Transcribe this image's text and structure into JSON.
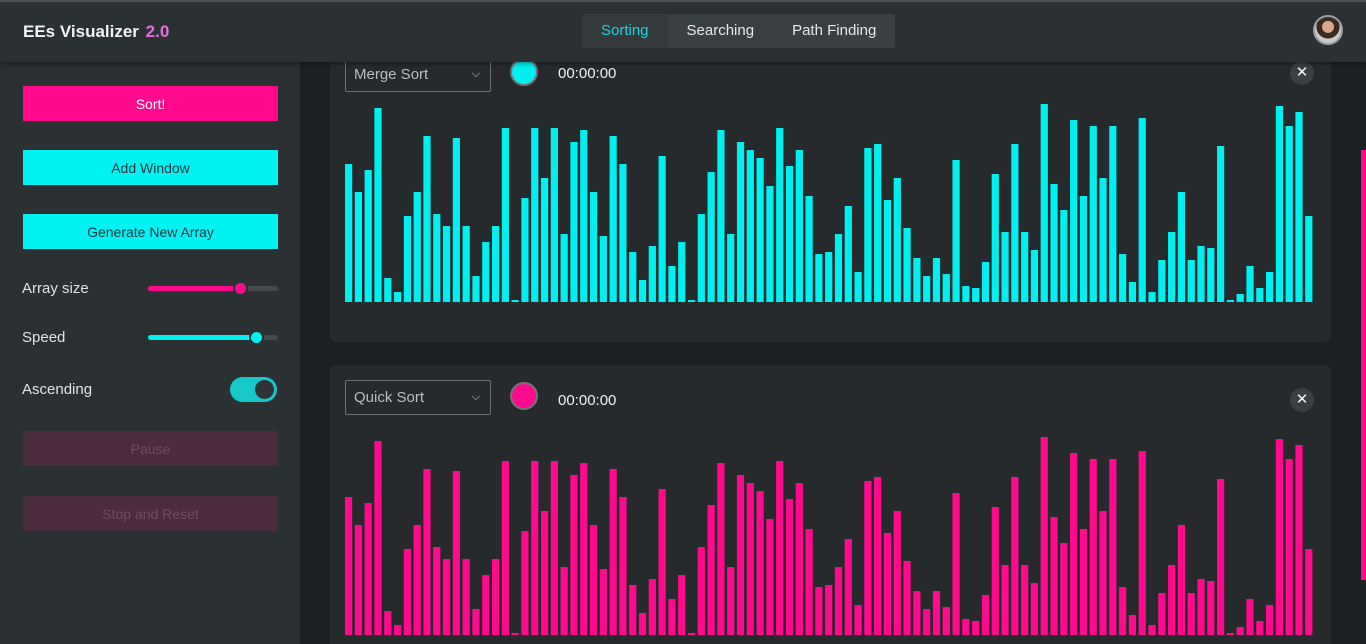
{
  "header": {
    "brand": "EEs Visualizer",
    "version": "2.0",
    "tabs": [
      {
        "label": "Sorting",
        "active": true
      },
      {
        "label": "Searching",
        "active": false
      },
      {
        "label": "Path Finding",
        "active": false
      }
    ]
  },
  "sidebar": {
    "sort_label": "Sort!",
    "add_window_label": "Add Window",
    "generate_label": "Generate New Array",
    "array_size_label": "Array size",
    "array_size_level": 0.71,
    "speed_label": "Speed",
    "speed_level": 0.83,
    "ascending_label": "Ascending",
    "ascending_on": true,
    "pause_label": "Pause",
    "stop_reset_label": "Stop and Reset"
  },
  "windows": [
    {
      "algorithm": "Merge Sort",
      "timer": "00:00:00",
      "color": "#00f0f0",
      "close": "✕"
    },
    {
      "algorithm": "Quick Sort",
      "timer": "00:00:00",
      "color": "#ff0a8c",
      "close": "✕"
    }
  ],
  "chart_data": {
    "type": "bar",
    "values": [
      69,
      55,
      66,
      97,
      12,
      5,
      43,
      55,
      83,
      44,
      38,
      82,
      38,
      13,
      30,
      38,
      87,
      1,
      52,
      87,
      62,
      87,
      34,
      80,
      86,
      55,
      33,
      83,
      69,
      25,
      11,
      28,
      73,
      18,
      30,
      1,
      44,
      65,
      86,
      34,
      80,
      76,
      72,
      58,
      87,
      68,
      76,
      53,
      24,
      25,
      34,
      48,
      15,
      77,
      79,
      51,
      62,
      37,
      22,
      13,
      22,
      14,
      71,
      8,
      7,
      20,
      64,
      35,
      79,
      35,
      26,
      99,
      59,
      46,
      91,
      53,
      88,
      62,
      88,
      24,
      10,
      92,
      5,
      21,
      35,
      55,
      21,
      28,
      27,
      78,
      1,
      4,
      18,
      7,
      15,
      98,
      88,
      95,
      43
    ]
  },
  "colors": {
    "pink": "#ff0a8c",
    "cyan": "#00f2f2"
  }
}
